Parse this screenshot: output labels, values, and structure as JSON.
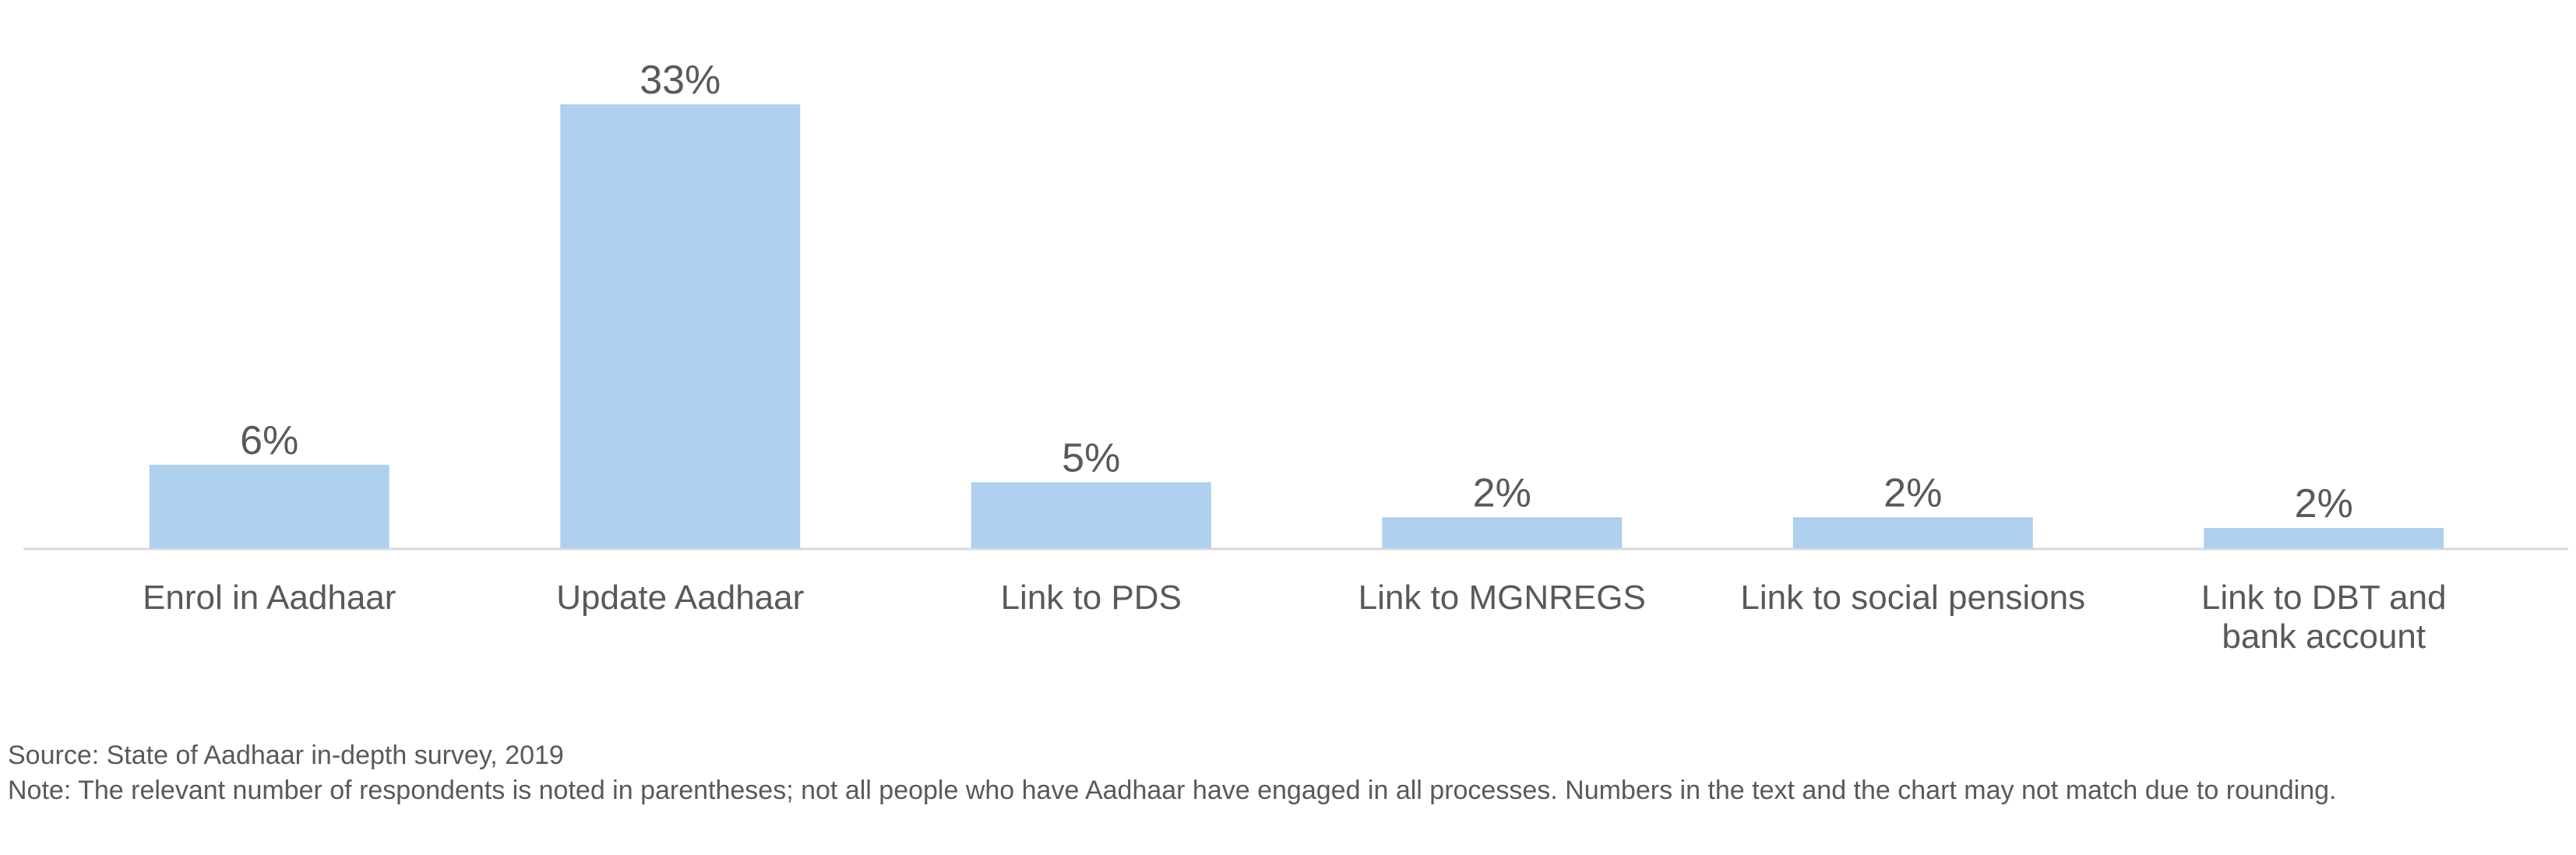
{
  "chart_data": {
    "type": "bar",
    "categories": [
      "Enrol in Aadhaar",
      "Update Aadhaar",
      "Link to PDS",
      "Link to MGNREGS",
      "Link to social pensions",
      "Link to DBT and bank account"
    ],
    "values": [
      6,
      33,
      5,
      2,
      2,
      2
    ],
    "value_labels": [
      "6%",
      "33%",
      "5%",
      "2%",
      "2%",
      "2%"
    ],
    "heights_pct": [
      6.2,
      33,
      4.9,
      2.3,
      2.3,
      1.5
    ],
    "title": "",
    "xlabel": "",
    "ylabel": "",
    "ylim": [
      0,
      35
    ],
    "grid": false,
    "legend": "none",
    "colors": {
      "bar": "#AFD0EE",
      "axis": "#D9D9D9",
      "text": "#595959"
    }
  },
  "notes": {
    "source": "Source: State of Aadhaar in-depth survey, 2019",
    "note": "Note: The relevant number of respondents is noted in parentheses; not all people who have Aadhaar have engaged in all processes. Numbers in the text and the chart may not match due to rounding."
  }
}
